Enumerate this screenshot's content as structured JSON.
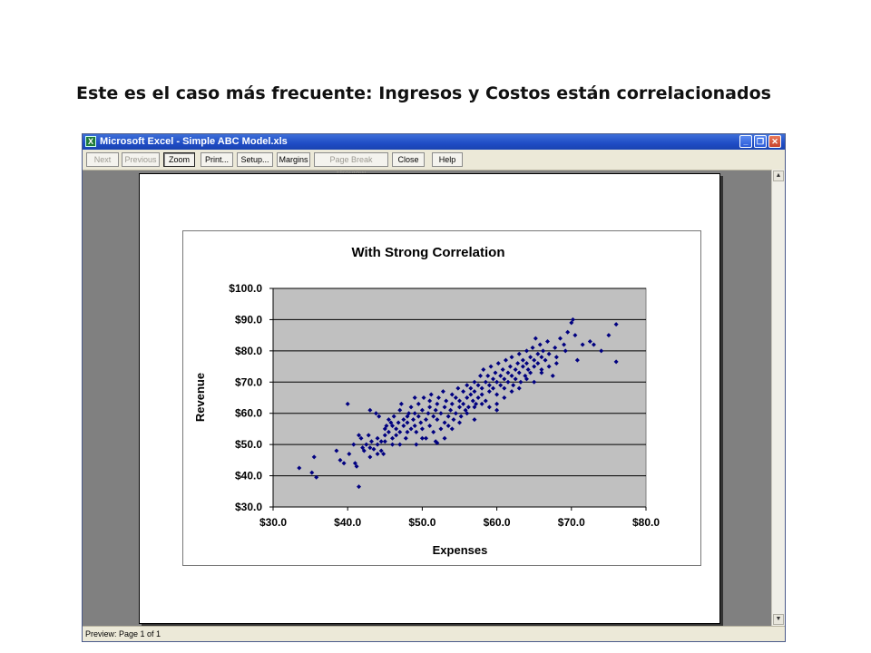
{
  "slide": {
    "title": "Este es el caso más frecuente: Ingresos y Costos están correlacionados"
  },
  "window": {
    "app_icon": "excel-icon",
    "title": "Microsoft Excel - Simple ABC Model.xls"
  },
  "toolbar": {
    "buttons": [
      {
        "label": "Next",
        "enabled": false
      },
      {
        "label": "Previous",
        "enabled": false
      },
      {
        "label": "Zoom",
        "enabled": true
      },
      {
        "label": "Print...",
        "enabled": true
      },
      {
        "label": "Setup...",
        "enabled": true
      },
      {
        "label": "Margins",
        "enabled": true
      },
      {
        "label": "Page Break Preview",
        "enabled": false
      },
      {
        "label": "Close",
        "enabled": true
      },
      {
        "label": "Help",
        "enabled": true
      }
    ]
  },
  "status": {
    "text": "Preview: Page 1 of 1"
  },
  "colors": {
    "plot_bg": "#c0c0c0",
    "marker": "#000080",
    "titlebar": "#1f4cc5"
  },
  "chart_data": {
    "type": "scatter",
    "title": "With Strong Correlation",
    "xlabel": "Expenses",
    "ylabel": "Revenue",
    "xlim": [
      30,
      80
    ],
    "ylim": [
      30,
      100
    ],
    "x_ticks": [
      "$30.0",
      "$40.0",
      "$50.0",
      "$60.0",
      "$70.0",
      "$80.0"
    ],
    "y_ticks": [
      "$30.0",
      "$40.0",
      "$50.0",
      "$60.0",
      "$70.0",
      "$80.0",
      "$90.0",
      "$100.0"
    ],
    "grid": "horizontal",
    "legend": "none",
    "points": [
      [
        33.5,
        42.5
      ],
      [
        35.2,
        41
      ],
      [
        35.5,
        46
      ],
      [
        35.8,
        39.5
      ],
      [
        38.5,
        48
      ],
      [
        39,
        45
      ],
      [
        39.5,
        44
      ],
      [
        40,
        63
      ],
      [
        40.2,
        47
      ],
      [
        40.8,
        50
      ],
      [
        41,
        44
      ],
      [
        41.2,
        43
      ],
      [
        41.5,
        36.5
      ],
      [
        41.5,
        53
      ],
      [
        41.8,
        52
      ],
      [
        42,
        49
      ],
      [
        42.2,
        48
      ],
      [
        42.5,
        50
      ],
      [
        42.8,
        53
      ],
      [
        43,
        61
      ],
      [
        43,
        49
      ],
      [
        43.2,
        51
      ],
      [
        43.5,
        48.5
      ],
      [
        43.8,
        60
      ],
      [
        44,
        52
      ],
      [
        44,
        50
      ],
      [
        44.2,
        59
      ],
      [
        44.5,
        51
      ],
      [
        44.5,
        48
      ],
      [
        44.8,
        47
      ],
      [
        45,
        55
      ],
      [
        45,
        53
      ],
      [
        45.2,
        56
      ],
      [
        45.5,
        54
      ],
      [
        45.5,
        58
      ],
      [
        45.8,
        57
      ],
      [
        46,
        52
      ],
      [
        46,
        56
      ],
      [
        46.2,
        59
      ],
      [
        46.5,
        55
      ],
      [
        46.5,
        53
      ],
      [
        46.8,
        57
      ],
      [
        47,
        61
      ],
      [
        47,
        54
      ],
      [
        47.2,
        63
      ],
      [
        47.5,
        58
      ],
      [
        47.5,
        56
      ],
      [
        47.8,
        52
      ],
      [
        48,
        59
      ],
      [
        48,
        57
      ],
      [
        48.2,
        60
      ],
      [
        48.5,
        55
      ],
      [
        48.5,
        62
      ],
      [
        48.8,
        58
      ],
      [
        49,
        56
      ],
      [
        49,
        60
      ],
      [
        49.2,
        54
      ],
      [
        49.2,
        50
      ],
      [
        49.5,
        59
      ],
      [
        49.5,
        63
      ],
      [
        49.8,
        57
      ],
      [
        50,
        61
      ],
      [
        50,
        55
      ],
      [
        50.2,
        65
      ],
      [
        50.5,
        58
      ],
      [
        50.5,
        52
      ],
      [
        50.8,
        60
      ],
      [
        51,
        62
      ],
      [
        51,
        56
      ],
      [
        51.2,
        66
      ],
      [
        51.5,
        59
      ],
      [
        51.5,
        54
      ],
      [
        51.8,
        61
      ],
      [
        51.8,
        51
      ],
      [
        52,
        63
      ],
      [
        52,
        58
      ],
      [
        52.2,
        65
      ],
      [
        52.5,
        60
      ],
      [
        52.5,
        55
      ],
      [
        52.8,
        67
      ],
      [
        53,
        62
      ],
      [
        53,
        57
      ],
      [
        53.2,
        64
      ],
      [
        53.5,
        59
      ],
      [
        53.5,
        56
      ],
      [
        53.8,
        61
      ],
      [
        54,
        66
      ],
      [
        54,
        63
      ],
      [
        54.2,
        58
      ],
      [
        54.5,
        65
      ],
      [
        54.5,
        60
      ],
      [
        54.8,
        68
      ],
      [
        55,
        62
      ],
      [
        55,
        64
      ],
      [
        55.2,
        59
      ],
      [
        55.5,
        67
      ],
      [
        55.5,
        63
      ],
      [
        55.8,
        61
      ],
      [
        56,
        69
      ],
      [
        56,
        65
      ],
      [
        56.2,
        62
      ],
      [
        56.5,
        68
      ],
      [
        56.5,
        66
      ],
      [
        56.8,
        64
      ],
      [
        57,
        70
      ],
      [
        57,
        67
      ],
      [
        57.2,
        63
      ],
      [
        57.5,
        69
      ],
      [
        57.5,
        65
      ],
      [
        57.8,
        72
      ],
      [
        58,
        68
      ],
      [
        58,
        66
      ],
      [
        58.2,
        74
      ],
      [
        58.5,
        70
      ],
      [
        58.5,
        64
      ],
      [
        58.8,
        72
      ],
      [
        59,
        69
      ],
      [
        59,
        67
      ],
      [
        59.2,
        75
      ],
      [
        59.5,
        71
      ],
      [
        59.5,
        68
      ],
      [
        59.8,
        73
      ],
      [
        60,
        70
      ],
      [
        60,
        66
      ],
      [
        60.2,
        76
      ],
      [
        60.5,
        72
      ],
      [
        60.5,
        69
      ],
      [
        60.8,
        74
      ],
      [
        61,
        71
      ],
      [
        61,
        68
      ],
      [
        61.2,
        77
      ],
      [
        61.5,
        73
      ],
      [
        61.5,
        70
      ],
      [
        61.8,
        75
      ],
      [
        62,
        72
      ],
      [
        62,
        78
      ],
      [
        62.2,
        69
      ],
      [
        62.5,
        74
      ],
      [
        62.5,
        71
      ],
      [
        62.8,
        76
      ],
      [
        63,
        73
      ],
      [
        63,
        79
      ],
      [
        63.2,
        70
      ],
      [
        63.5,
        75
      ],
      [
        63.5,
        77
      ],
      [
        63.8,
        72
      ],
      [
        64,
        76
      ],
      [
        64,
        80
      ],
      [
        64.2,
        74
      ],
      [
        64.5,
        78
      ],
      [
        64.5,
        73
      ],
      [
        64.8,
        81
      ],
      [
        65,
        77
      ],
      [
        65,
        75
      ],
      [
        65.2,
        84
      ],
      [
        65.5,
        79
      ],
      [
        65.5,
        76
      ],
      [
        65.8,
        82
      ],
      [
        66,
        78
      ],
      [
        66,
        74
      ],
      [
        66.2,
        80
      ],
      [
        66.5,
        77
      ],
      [
        66.8,
        83
      ],
      [
        67,
        79
      ],
      [
        67.5,
        72
      ],
      [
        67.8,
        81
      ],
      [
        68,
        78
      ],
      [
        68.5,
        84
      ],
      [
        69,
        82
      ],
      [
        69.2,
        80
      ],
      [
        69.5,
        86
      ],
      [
        70,
        89
      ],
      [
        70.2,
        90
      ],
      [
        70.5,
        85
      ],
      [
        70.8,
        77
      ],
      [
        71.5,
        82
      ],
      [
        72.5,
        83
      ],
      [
        73,
        82
      ],
      [
        74,
        80
      ],
      [
        75,
        85
      ],
      [
        76,
        88.5
      ],
      [
        76,
        76.5
      ],
      [
        60,
        63
      ],
      [
        57,
        62
      ],
      [
        52,
        50.5
      ],
      [
        48,
        54
      ],
      [
        46,
        50
      ],
      [
        44,
        47
      ],
      [
        55,
        57
      ],
      [
        58,
        63
      ],
      [
        62,
        67
      ],
      [
        65,
        70
      ],
      [
        49,
        65
      ],
      [
        53,
        52
      ],
      [
        51,
        64
      ],
      [
        56,
        60
      ],
      [
        59,
        62
      ],
      [
        61,
        65
      ],
      [
        63,
        68
      ],
      [
        66,
        73
      ],
      [
        68,
        76
      ],
      [
        47,
        50
      ],
      [
        45,
        51
      ],
      [
        43,
        46
      ],
      [
        50,
        52
      ],
      [
        54,
        55
      ],
      [
        57,
        58
      ],
      [
        60,
        61
      ],
      [
        64,
        71
      ],
      [
        67,
        75
      ]
    ]
  }
}
